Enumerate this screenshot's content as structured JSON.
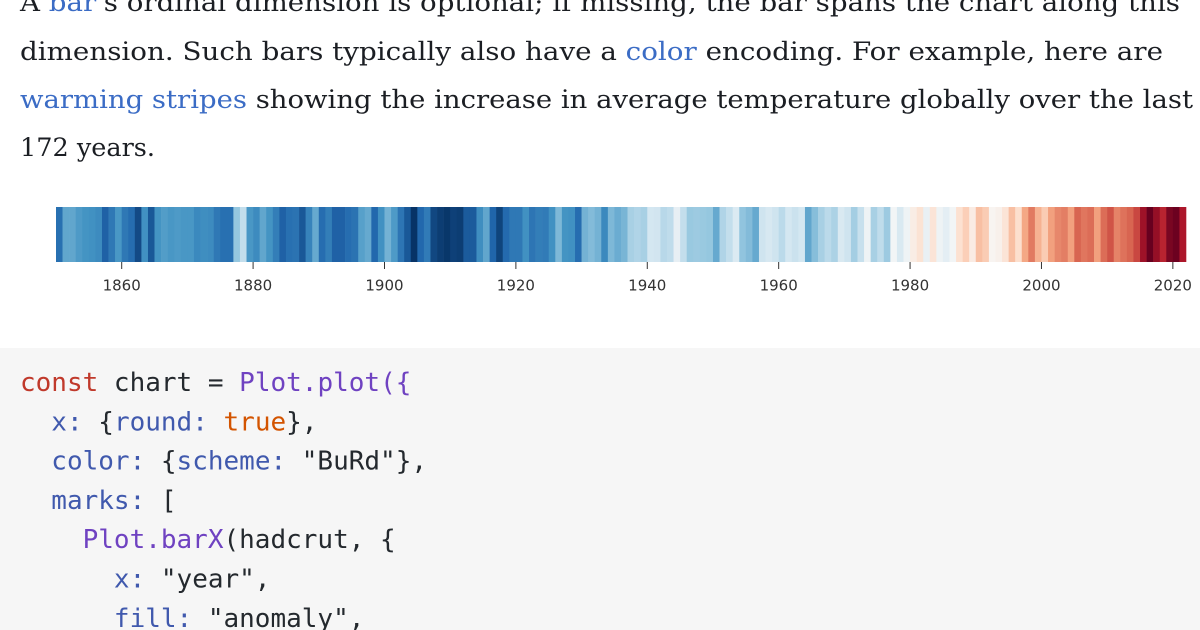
{
  "paragraph": {
    "lines": [
      [
        {
          "text": "A "
        },
        {
          "text": "bar",
          "link": true
        },
        {
          "text": "'s ordinal dimension is optional; if missing, the bar spans the chart along this"
        }
      ],
      [
        {
          "text": "dimension. Such bars typically also have a "
        },
        {
          "text": "color",
          "link": true
        },
        {
          "text": " encoding. For example, here are"
        }
      ],
      [
        {
          "text": "warming stripes",
          "link": true
        },
        {
          "text": " showing the increase in average temperature globally over the last"
        }
      ],
      [
        {
          "text": "172 years."
        }
      ]
    ]
  },
  "chart_data": {
    "type": "stripes",
    "scheme": [
      "#053061",
      "#2166ac",
      "#4393c3",
      "#92c5de",
      "#d1e5f0",
      "#f7f7f7",
      "#fddbc7",
      "#f4a582",
      "#d6604d",
      "#b2182b",
      "#67001f"
    ],
    "colorlim": [
      -0.62,
      1.02
    ],
    "xlim": [
      1850,
      2022
    ],
    "xticks": [
      1860,
      1880,
      1900,
      1920,
      1940,
      1960,
      1980,
      2000,
      2020
    ],
    "x": [
      1850,
      1851,
      1852,
      1853,
      1854,
      1855,
      1856,
      1857,
      1858,
      1859,
      1860,
      1861,
      1862,
      1863,
      1864,
      1865,
      1866,
      1867,
      1868,
      1869,
      1870,
      1871,
      1872,
      1873,
      1874,
      1875,
      1876,
      1877,
      1878,
      1879,
      1880,
      1881,
      1882,
      1883,
      1884,
      1885,
      1886,
      1887,
      1888,
      1889,
      1890,
      1891,
      1892,
      1893,
      1894,
      1895,
      1896,
      1897,
      1898,
      1899,
      1900,
      1901,
      1902,
      1903,
      1904,
      1905,
      1906,
      1907,
      1908,
      1909,
      1910,
      1911,
      1912,
      1913,
      1914,
      1915,
      1916,
      1917,
      1918,
      1919,
      1920,
      1921,
      1922,
      1923,
      1924,
      1925,
      1926,
      1927,
      1928,
      1929,
      1930,
      1931,
      1932,
      1933,
      1934,
      1935,
      1936,
      1937,
      1938,
      1939,
      1940,
      1941,
      1942,
      1943,
      1944,
      1945,
      1946,
      1947,
      1948,
      1949,
      1950,
      1951,
      1952,
      1953,
      1954,
      1955,
      1956,
      1957,
      1958,
      1959,
      1960,
      1961,
      1962,
      1963,
      1964,
      1965,
      1966,
      1967,
      1968,
      1969,
      1970,
      1971,
      1972,
      1973,
      1974,
      1975,
      1976,
      1977,
      1978,
      1979,
      1980,
      1981,
      1982,
      1983,
      1984,
      1985,
      1986,
      1987,
      1988,
      1989,
      1990,
      1991,
      1992,
      1993,
      1994,
      1995,
      1996,
      1997,
      1998,
      1999,
      2000,
      2001,
      2002,
      2003,
      2004,
      2005,
      2006,
      2007,
      2008,
      2009,
      2010,
      2011,
      2012,
      2013,
      2014,
      2015,
      2016,
      2017,
      2018,
      2019,
      2020,
      2021
    ],
    "values": [
      -0.42,
      -0.23,
      -0.23,
      -0.27,
      -0.29,
      -0.3,
      -0.32,
      -0.47,
      -0.39,
      -0.28,
      -0.39,
      -0.43,
      -0.54,
      -0.3,
      -0.5,
      -0.29,
      -0.26,
      -0.28,
      -0.27,
      -0.28,
      -0.28,
      -0.33,
      -0.31,
      -0.32,
      -0.39,
      -0.42,
      -0.42,
      -0.12,
      0.0,
      -0.28,
      -0.32,
      -0.23,
      -0.29,
      -0.37,
      -0.47,
      -0.42,
      -0.41,
      -0.5,
      -0.35,
      -0.22,
      -0.43,
      -0.37,
      -0.47,
      -0.47,
      -0.43,
      -0.41,
      -0.25,
      -0.22,
      -0.45,
      -0.3,
      -0.19,
      -0.27,
      -0.4,
      -0.5,
      -0.61,
      -0.45,
      -0.38,
      -0.55,
      -0.58,
      -0.6,
      -0.57,
      -0.58,
      -0.49,
      -0.49,
      -0.31,
      -0.23,
      -0.46,
      -0.56,
      -0.44,
      -0.39,
      -0.39,
      -0.3,
      -0.4,
      -0.37,
      -0.38,
      -0.3,
      -0.17,
      -0.29,
      -0.3,
      -0.43,
      -0.19,
      -0.16,
      -0.19,
      -0.33,
      -0.17,
      -0.21,
      -0.18,
      -0.07,
      -0.05,
      -0.07,
      0.05,
      0.04,
      -0.03,
      -0.01,
      0.13,
      0.0,
      -0.11,
      -0.1,
      -0.11,
      -0.12,
      -0.22,
      -0.05,
      0.0,
      0.08,
      -0.13,
      -0.16,
      -0.22,
      0.03,
      0.06,
      0.03,
      -0.02,
      0.05,
      0.02,
      0.05,
      -0.23,
      -0.15,
      -0.07,
      -0.02,
      -0.06,
      0.07,
      0.03,
      -0.08,
      0.01,
      0.16,
      -0.07,
      -0.01,
      -0.1,
      0.18,
      0.07,
      0.16,
      0.26,
      0.32,
      0.14,
      0.31,
      0.16,
      0.12,
      0.18,
      0.33,
      0.4,
      0.27,
      0.45,
      0.41,
      0.22,
      0.24,
      0.31,
      0.45,
      0.34,
      0.52,
      0.63,
      0.49,
      0.41,
      0.54,
      0.6,
      0.62,
      0.54,
      0.68,
      0.64,
      0.66,
      0.54,
      0.66,
      0.72,
      0.61,
      0.65,
      0.68,
      0.75,
      0.9,
      1.02,
      0.92,
      0.83,
      0.98,
      1.01,
      0.87
    ]
  },
  "code": {
    "lines": [
      [
        {
          "text": "const",
          "kind": "keyword"
        },
        {
          "text": " chart = "
        },
        {
          "text": "Plot.plot",
          "kind": "function"
        },
        {
          "text": "({",
          "kind": "function"
        }
      ],
      [
        {
          "text": "  x:",
          "kind": "property"
        },
        {
          "text": " {"
        },
        {
          "text": "round:",
          "kind": "property"
        },
        {
          "text": " "
        },
        {
          "text": "true",
          "kind": "boolean"
        },
        {
          "text": "},"
        }
      ],
      [
        {
          "text": "  color:",
          "kind": "property"
        },
        {
          "text": " {"
        },
        {
          "text": "scheme:",
          "kind": "property"
        },
        {
          "text": " \"BuRd\"},"
        }
      ],
      [
        {
          "text": "  marks:",
          "kind": "property"
        },
        {
          "text": " ["
        }
      ],
      [
        {
          "text": "    Plot.barX",
          "kind": "function"
        },
        {
          "text": "(hadcrut, {"
        }
      ],
      [
        {
          "text": "      x:",
          "kind": "property"
        },
        {
          "text": " \"year\","
        }
      ],
      [
        {
          "text": "      fill:",
          "kind": "property"
        },
        {
          "text": " \"anomaly\","
        }
      ]
    ]
  }
}
